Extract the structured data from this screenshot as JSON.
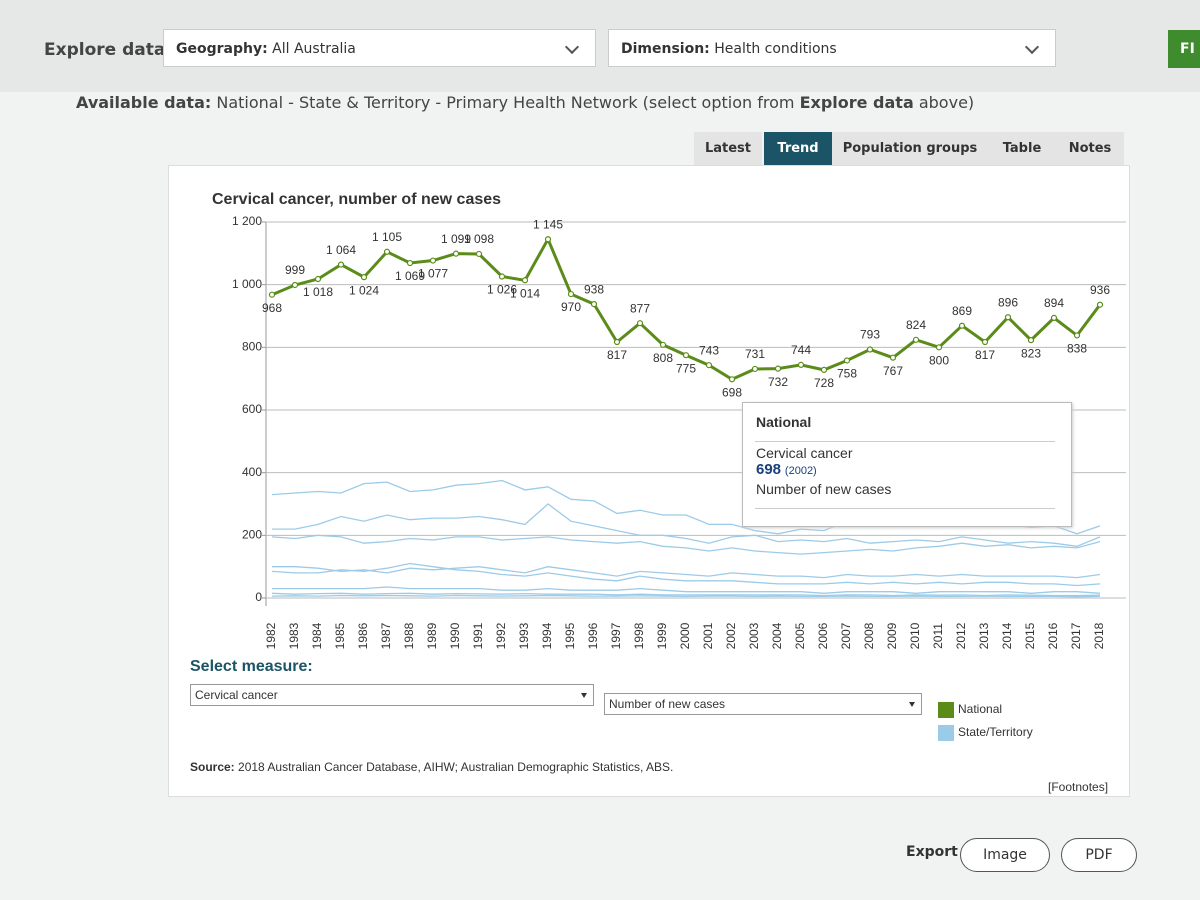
{
  "header": {
    "title": "Explore data",
    "geography_label": "Geography:",
    "geography_value": "All Australia",
    "dimension_label": "Dimension:",
    "dimension_value": "Health conditions",
    "button": "FI"
  },
  "available": {
    "label": "Available data:",
    "text": "National - State & Territory - Primary Health Network (select option from",
    "link": "Explore data",
    "tail": "above)"
  },
  "tabs": [
    "Latest",
    "Trend",
    "Population groups",
    "Table",
    "Notes"
  ],
  "active_tab": 1,
  "chart_data": {
    "type": "line",
    "title": "Cervical cancer, number of new cases",
    "categories": [
      "1982",
      "1983",
      "1984",
      "1985",
      "1986",
      "1987",
      "1988",
      "1989",
      "1990",
      "1991",
      "1992",
      "1993",
      "1994",
      "1995",
      "1996",
      "1997",
      "1998",
      "1999",
      "2000",
      "2001",
      "2002",
      "2003",
      "2004",
      "2005",
      "2006",
      "2007",
      "2008",
      "2009",
      "2010",
      "2011",
      "2012",
      "2013",
      "2014",
      "2015",
      "2016",
      "2017",
      "2018"
    ],
    "series": [
      {
        "name": "National",
        "color": "#5b8c1a",
        "values": [
          968,
          999,
          1018,
          1064,
          1024,
          1105,
          1069,
          1077,
          1099,
          1098,
          1026,
          1014,
          1145,
          970,
          938,
          817,
          877,
          808,
          775,
          743,
          698,
          731,
          732,
          744,
          728,
          758,
          793,
          767,
          824,
          800,
          869,
          817,
          896,
          823,
          894,
          838,
          936
        ],
        "value_labels": [
          "968",
          "999",
          "1 018",
          "1 064",
          "1 024",
          "1 105",
          "1 069",
          "1 077",
          "1 099",
          "1 098",
          "1 026",
          "1 014",
          "1 145",
          "970",
          "938",
          "817",
          "877",
          "808",
          "775",
          "743",
          "698",
          "731",
          "732",
          "744",
          "728",
          "758",
          "793",
          "767",
          "824",
          "800",
          "869",
          "817",
          "896",
          "823",
          "894",
          "838",
          "936"
        ]
      }
    ],
    "state_series": {
      "name": "State/Territory",
      "color": "#9ccbe8",
      "lines": [
        [
          330,
          335,
          340,
          335,
          365,
          370,
          340,
          345,
          360,
          365,
          375,
          345,
          355,
          315,
          310,
          270,
          280,
          265,
          265,
          235,
          235,
          215,
          205,
          220,
          215,
          245,
          240,
          240,
          235,
          240,
          245,
          240,
          235,
          225,
          230,
          205,
          230
        ],
        [
          220,
          220,
          235,
          260,
          245,
          265,
          250,
          255,
          255,
          260,
          250,
          235,
          300,
          245,
          230,
          215,
          200,
          200,
          190,
          175,
          195,
          200,
          180,
          185,
          180,
          190,
          175,
          180,
          185,
          180,
          195,
          185,
          175,
          180,
          175,
          165,
          195
        ],
        [
          195,
          190,
          200,
          195,
          175,
          180,
          190,
          185,
          195,
          195,
          185,
          190,
          195,
          185,
          180,
          175,
          180,
          165,
          160,
          150,
          160,
          150,
          145,
          140,
          145,
          150,
          155,
          150,
          160,
          165,
          175,
          165,
          170,
          160,
          165,
          160,
          180
        ],
        [
          100,
          100,
          95,
          85,
          90,
          80,
          95,
          90,
          95,
          100,
          90,
          80,
          100,
          90,
          80,
          70,
          85,
          80,
          75,
          70,
          80,
          75,
          70,
          70,
          65,
          75,
          70,
          70,
          75,
          70,
          75,
          70,
          70,
          70,
          70,
          65,
          75
        ],
        [
          85,
          80,
          80,
          90,
          85,
          95,
          110,
          100,
          90,
          85,
          75,
          70,
          80,
          70,
          60,
          55,
          70,
          60,
          55,
          55,
          55,
          50,
          45,
          45,
          45,
          50,
          45,
          50,
          45,
          50,
          45,
          50,
          50,
          45,
          45,
          40,
          45
        ],
        [
          30,
          30,
          30,
          30,
          30,
          35,
          30,
          30,
          30,
          30,
          25,
          25,
          30,
          25,
          25,
          25,
          30,
          25,
          20,
          20,
          20,
          20,
          20,
          20,
          15,
          20,
          20,
          20,
          15,
          20,
          20,
          20,
          20,
          15,
          20,
          20,
          15
        ],
        [
          15,
          12,
          14,
          15,
          12,
          14,
          15,
          12,
          14,
          13,
          12,
          14,
          12,
          12,
          12,
          10,
          12,
          10,
          10,
          10,
          10,
          10,
          10,
          10,
          8,
          10,
          10,
          8,
          10,
          9,
          10,
          8,
          10,
          9,
          8,
          8,
          9
        ],
        [
          6,
          7,
          6,
          8,
          7,
          8,
          7,
          6,
          8,
          7,
          6,
          7,
          8,
          7,
          6,
          6,
          7,
          6,
          5,
          6,
          6,
          5,
          6,
          5,
          5,
          6,
          5,
          5,
          6,
          5,
          5,
          6,
          5,
          5,
          5,
          4,
          5
        ]
      ]
    },
    "ylim": [
      0,
      1200
    ],
    "yticks": [
      0,
      200,
      400,
      600,
      800,
      {
        "value": 1000,
        "label": "1 000"
      },
      {
        "value": 1200,
        "label": "1 200"
      }
    ],
    "grid": true,
    "tooltip": {
      "title": "National",
      "measure": "Cervical cancer",
      "value": 698,
      "year": "(2002)",
      "unit": "Number of new cases"
    }
  },
  "controls": {
    "label": "Select measure:",
    "measure": "Cervical cancer",
    "unit": "Number of new cases"
  },
  "source": {
    "label": "Source:",
    "text": "2018 Australian Cancer Database, AIHW; Australian Demographic Statistics, ABS."
  },
  "footnotes": "[Footnotes]",
  "export": {
    "label": "Export",
    "image": "Image",
    "pdf": "PDF"
  }
}
